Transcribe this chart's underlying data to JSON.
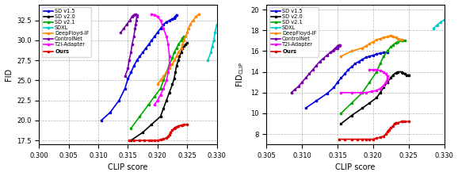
{
  "methods": [
    "SD v1.5",
    "SD v2.0",
    "SD v2.1",
    "SDXL",
    "DeepFloyd-IF",
    "ControlNet",
    "T2I-Adapter",
    "Ours"
  ],
  "colors_map": {
    "SD v1.5": "#0000dd",
    "SD v2.0": "#000000",
    "SD v2.1": "#00aa00",
    "SDXL": "#00cccc",
    "DeepFloyd-IF": "#ff8800",
    "ControlNet": "#7700aa",
    "T2I-Adapter": "#ff00ff",
    "Ours": "#dd0000"
  },
  "left": {
    "ylabel": "FID",
    "xlabel": "CLIP score",
    "xlim": [
      0.3,
      0.33
    ],
    "ylim": [
      17.0,
      34.5
    ],
    "yticks": [
      17.5,
      20.0,
      22.5,
      25.0,
      27.5,
      30.0,
      32.5
    ],
    "xticks": [
      0.3,
      0.305,
      0.31,
      0.315,
      0.32,
      0.325,
      0.33
    ],
    "curves": {
      "SD v1.5": {
        "clip": [
          0.3105,
          0.312,
          0.3135,
          0.3145,
          0.315,
          0.3155,
          0.316,
          0.3165,
          0.317,
          0.3175,
          0.318,
          0.3185,
          0.319,
          0.3195,
          0.32,
          0.3205,
          0.321,
          0.3215,
          0.322,
          0.3225,
          0.3228,
          0.323,
          0.3232
        ],
        "fid": [
          20.0,
          21.0,
          22.5,
          24.0,
          25.2,
          26.0,
          26.8,
          27.5,
          28.0,
          28.5,
          29.0,
          29.5,
          30.0,
          30.5,
          31.0,
          31.5,
          32.0,
          32.3,
          32.5,
          32.7,
          32.8,
          33.0,
          33.2
        ]
      },
      "SD v2.0": {
        "clip": [
          0.3155,
          0.3175,
          0.319,
          0.3205,
          0.321,
          0.3215,
          0.322,
          0.3225,
          0.3228,
          0.323,
          0.3232,
          0.3235,
          0.3237,
          0.324,
          0.3242,
          0.3245,
          0.3247,
          0.325
        ],
        "fid": [
          17.5,
          18.5,
          19.5,
          20.5,
          21.5,
          22.5,
          23.5,
          24.5,
          25.2,
          26.0,
          26.8,
          27.5,
          28.0,
          28.5,
          29.0,
          29.3,
          29.5,
          29.7
        ]
      },
      "SD v2.1": {
        "clip": [
          0.3155,
          0.317,
          0.3185,
          0.3195,
          0.3205,
          0.321,
          0.3215,
          0.322,
          0.3225,
          0.3228,
          0.3232,
          0.3235,
          0.324,
          0.3242,
          0.3245
        ],
        "fid": [
          19.0,
          20.5,
          22.0,
          23.0,
          24.0,
          25.0,
          26.0,
          27.0,
          27.8,
          28.5,
          29.0,
          29.5,
          30.0,
          30.3,
          30.5
        ]
      },
      "SDXL": {
        "clip": [
          0.3285,
          0.329,
          0.3292,
          0.3295,
          0.3297,
          0.33
        ],
        "fid": [
          27.5,
          28.5,
          29.2,
          30.0,
          31.0,
          32.0
        ]
      },
      "DeepFloyd-IF": {
        "clip": [
          0.32,
          0.3205,
          0.321,
          0.3215,
          0.322,
          0.3225,
          0.3228,
          0.3232,
          0.3235,
          0.324,
          0.3242,
          0.3245,
          0.3247,
          0.325,
          0.3252,
          0.3255,
          0.326,
          0.3265,
          0.327
        ],
        "fid": [
          24.5,
          25.0,
          25.5,
          26.0,
          26.5,
          27.0,
          27.5,
          28.0,
          28.5,
          29.0,
          29.5,
          30.0,
          30.5,
          31.0,
          31.5,
          32.0,
          32.5,
          33.0,
          33.3
        ]
      },
      "ControlNet": {
        "clip": [
          0.3145,
          0.315,
          0.3152,
          0.3155,
          0.3157,
          0.316,
          0.3162,
          0.3163,
          0.3164,
          0.3165,
          0.3165,
          0.3163,
          0.316,
          0.3157,
          0.3153,
          0.3148,
          0.3143,
          0.3138
        ],
        "fid": [
          25.5,
          26.5,
          27.5,
          28.5,
          29.5,
          30.5,
          31.5,
          32.0,
          32.5,
          33.0,
          33.2,
          33.3,
          33.2,
          33.0,
          32.5,
          32.0,
          31.5,
          31.0
        ]
      },
      "T2I-Adapter": {
        "clip": [
          0.3195,
          0.32,
          0.3205,
          0.321,
          0.3215,
          0.3218,
          0.322,
          0.322,
          0.3218,
          0.3215,
          0.321,
          0.3205,
          0.32,
          0.3195,
          0.319
        ],
        "fid": [
          22.0,
          22.5,
          23.2,
          24.0,
          25.0,
          26.0,
          27.0,
          28.0,
          29.5,
          30.5,
          31.5,
          32.5,
          33.0,
          33.2,
          33.3
        ]
      },
      "Ours": {
        "clip": [
          0.3152,
          0.316,
          0.317,
          0.3178,
          0.3185,
          0.319,
          0.3195,
          0.32,
          0.3205,
          0.321,
          0.3215,
          0.3218,
          0.322,
          0.3222,
          0.3225,
          0.3228,
          0.323,
          0.3232,
          0.3235,
          0.324,
          0.3242,
          0.3245,
          0.325
        ],
        "fid": [
          17.5,
          17.5,
          17.5,
          17.5,
          17.5,
          17.5,
          17.5,
          17.5,
          17.6,
          17.7,
          17.8,
          18.0,
          18.2,
          18.5,
          18.8,
          19.0,
          19.1,
          19.2,
          19.3,
          19.4,
          19.4,
          19.5,
          19.5
        ]
      }
    }
  },
  "right": {
    "ylabel": "FID$_{\\rm CLIP}$",
    "xlabel": "CLIP score",
    "xlim": [
      0.305,
      0.33
    ],
    "ylim": [
      7.0,
      20.5
    ],
    "yticks": [
      8,
      10,
      12,
      14,
      16,
      18,
      20
    ],
    "xticks": [
      0.305,
      0.31,
      0.315,
      0.32,
      0.325,
      0.33
    ],
    "curves": {
      "SD v1.5": {
        "clip": [
          0.3105,
          0.312,
          0.3135,
          0.3145,
          0.315,
          0.3155,
          0.316,
          0.3165,
          0.317,
          0.3175,
          0.318,
          0.3185,
          0.319,
          0.3195,
          0.32,
          0.3205,
          0.321,
          0.3215,
          0.322
        ],
        "fid": [
          10.5,
          11.2,
          11.9,
          12.5,
          13.0,
          13.4,
          13.8,
          14.2,
          14.5,
          14.8,
          15.0,
          15.2,
          15.4,
          15.5,
          15.6,
          15.7,
          15.8,
          15.85,
          15.9
        ]
      },
      "SD v2.0": {
        "clip": [
          0.3155,
          0.317,
          0.3185,
          0.3195,
          0.3205,
          0.321,
          0.3215,
          0.322,
          0.3225,
          0.3228,
          0.3232,
          0.3235,
          0.324,
          0.3242,
          0.3245,
          0.3247,
          0.325
        ],
        "fid": [
          9.0,
          9.8,
          10.5,
          11.0,
          11.5,
          12.0,
          12.5,
          13.0,
          13.4,
          13.7,
          13.9,
          14.0,
          14.0,
          13.9,
          13.8,
          13.7,
          13.7
        ]
      },
      "SD v2.1": {
        "clip": [
          0.3155,
          0.317,
          0.3185,
          0.3195,
          0.3205,
          0.321,
          0.3215,
          0.322,
          0.3225,
          0.3228,
          0.3232,
          0.3235,
          0.324,
          0.3242,
          0.3245
        ],
        "fid": [
          10.0,
          11.0,
          12.0,
          13.0,
          14.0,
          14.8,
          15.5,
          16.0,
          16.4,
          16.6,
          16.8,
          16.9,
          17.0,
          17.0,
          17.0
        ]
      },
      "SDXL": {
        "clip": [
          0.3285,
          0.329,
          0.3295,
          0.33
        ],
        "fid": [
          18.2,
          18.5,
          18.8,
          19.0
        ]
      },
      "DeepFloyd-IF": {
        "clip": [
          0.3155,
          0.317,
          0.3185,
          0.319,
          0.3195,
          0.32,
          0.3205,
          0.321,
          0.3215,
          0.322,
          0.3225,
          0.3228,
          0.3232,
          0.3235,
          0.324
        ],
        "fid": [
          15.5,
          16.0,
          16.3,
          16.5,
          16.7,
          16.9,
          17.1,
          17.2,
          17.3,
          17.4,
          17.5,
          17.4,
          17.3,
          17.2,
          17.1
        ]
      },
      "ControlNet": {
        "clip": [
          0.3085,
          0.309,
          0.3095,
          0.31,
          0.3105,
          0.311,
          0.3115,
          0.312,
          0.3125,
          0.313,
          0.3135,
          0.314,
          0.3145,
          0.315,
          0.3152,
          0.3153,
          0.3152,
          0.315,
          0.3147,
          0.3143
        ],
        "fid": [
          12.0,
          12.3,
          12.6,
          13.0,
          13.4,
          13.8,
          14.2,
          14.6,
          15.0,
          15.3,
          15.6,
          15.9,
          16.1,
          16.3,
          16.5,
          16.6,
          16.6,
          16.5,
          16.3,
          16.0
        ]
      },
      "T2I-Adapter": {
        "clip": [
          0.3155,
          0.317,
          0.3182,
          0.319,
          0.3198,
          0.3205,
          0.321,
          0.3215,
          0.3218,
          0.322,
          0.322,
          0.3218,
          0.3215,
          0.321,
          0.3205,
          0.32,
          0.3195
        ],
        "fid": [
          12.0,
          12.0,
          12.0,
          12.0,
          12.1,
          12.2,
          12.4,
          12.7,
          13.0,
          13.3,
          13.6,
          13.8,
          14.0,
          14.1,
          14.2,
          14.2,
          14.2
        ]
      },
      "Ours": {
        "clip": [
          0.3152,
          0.316,
          0.317,
          0.3178,
          0.3185,
          0.319,
          0.3195,
          0.32,
          0.3205,
          0.321,
          0.3215,
          0.3218,
          0.322,
          0.3222,
          0.3225,
          0.3228,
          0.323,
          0.3232,
          0.3235,
          0.324,
          0.3242,
          0.3245,
          0.325
        ],
        "fid": [
          7.5,
          7.5,
          7.5,
          7.5,
          7.5,
          7.5,
          7.5,
          7.5,
          7.6,
          7.7,
          7.8,
          8.0,
          8.2,
          8.4,
          8.6,
          8.8,
          9.0,
          9.1,
          9.1,
          9.2,
          9.2,
          9.2,
          9.2
        ]
      }
    }
  }
}
